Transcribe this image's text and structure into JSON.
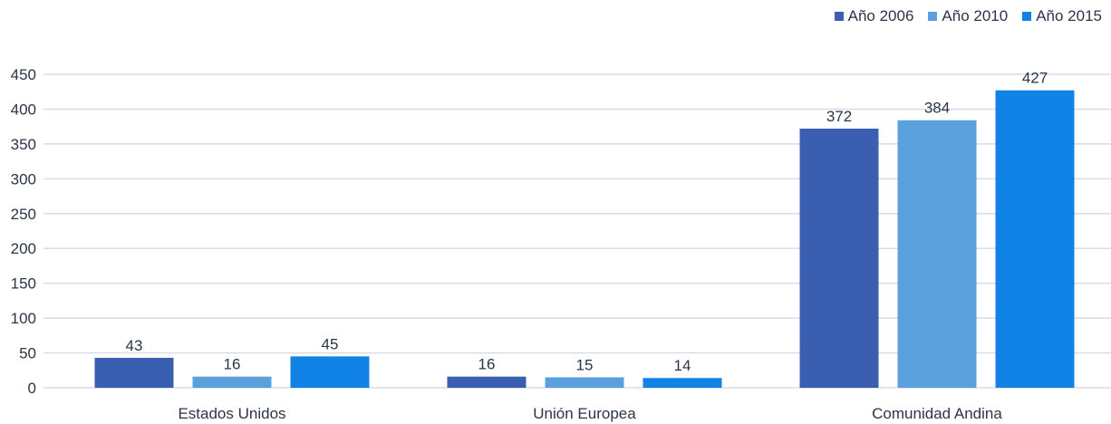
{
  "chart_data": {
    "type": "bar",
    "title": "",
    "xlabel": "",
    "ylabel": "",
    "categories": [
      "Estados Unidos",
      "Unión Europea",
      "Comunidad Andina"
    ],
    "series": [
      {
        "name": "Año 2006",
        "values": [
          43,
          16,
          372
        ],
        "color": "#3a5fb0"
      },
      {
        "name": "Año 2010",
        "values": [
          16,
          15,
          384
        ],
        "color": "#5aa0dc"
      },
      {
        "name": "Año 2015",
        "values": [
          45,
          14,
          427
        ],
        "color": "#1182e6"
      }
    ],
    "ylim": [
      0,
      450
    ],
    "yticks": [
      0,
      50,
      100,
      150,
      200,
      250,
      300,
      350,
      400,
      450
    ],
    "ytick_labels": [
      "0",
      "50",
      "100",
      "150",
      "200",
      "250",
      "300",
      "350",
      "400",
      "450"
    ],
    "grid": true,
    "legend_position": "top-right",
    "data_labels": true
  }
}
